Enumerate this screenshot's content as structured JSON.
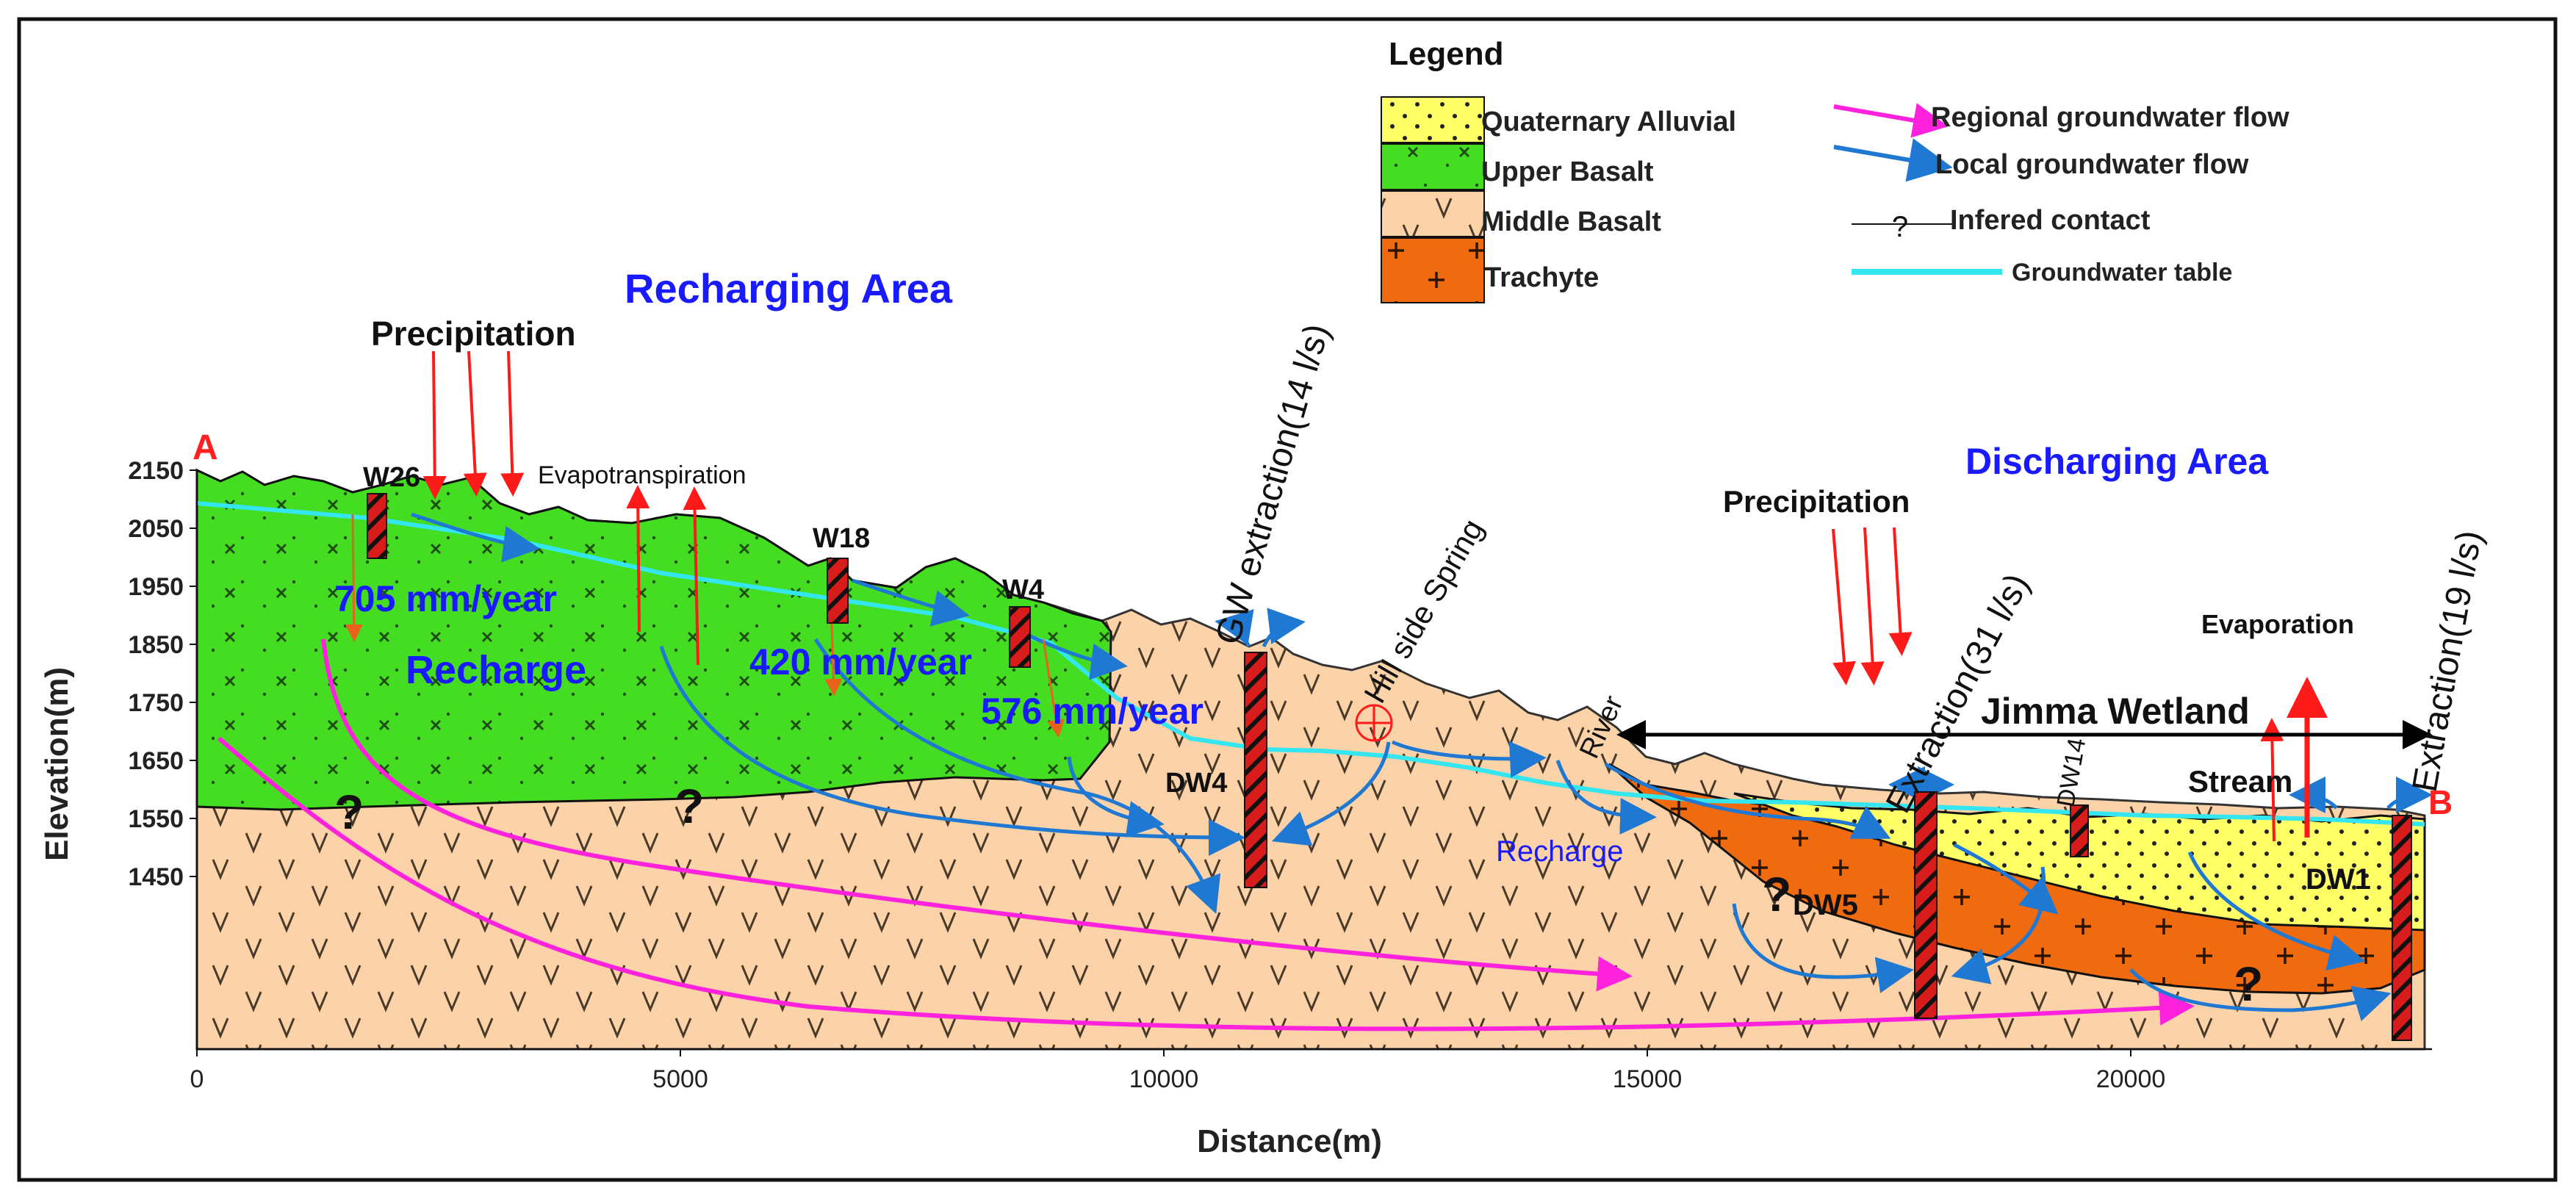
{
  "legend": {
    "title": "Legend",
    "units": [
      {
        "label": "Quaternary Alluvial",
        "color": "#ffff66",
        "pattern": "dots"
      },
      {
        "label": "Upper Basalt",
        "color": "#44dd22",
        "pattern": "crosses"
      },
      {
        "label": "Middle Basalt",
        "color": "#fcd2a8",
        "pattern": "vees"
      },
      {
        "label": "Trachyte",
        "color": "#f06a10",
        "pattern": "plus"
      }
    ],
    "symbols": [
      {
        "label": "Regional groundwater flow",
        "color": "#ff22dd"
      },
      {
        "label": "Local groundwater flow",
        "color": "#1f78d1"
      },
      {
        "label": "Infered contact",
        "glyph": "?"
      },
      {
        "label": "Groundwater table",
        "color": "#33e6f0"
      }
    ]
  },
  "axes": {
    "y_title": "Elevation(m)",
    "y_ticks": [
      "2150",
      "2050",
      "1950",
      "1850",
      "1750",
      "1650",
      "1550",
      "1450"
    ],
    "x_title": "Distance(m)",
    "x_ticks": [
      "0",
      "5000",
      "10000",
      "15000",
      "20000"
    ]
  },
  "section_ends": {
    "start": "A",
    "end": "B"
  },
  "areas": {
    "recharging": "Recharging Area",
    "discharging": "Discharging Area"
  },
  "labels": {
    "precipitation_left": "Precipitation",
    "precipitation_right": "Precipitation",
    "evapotranspiration": "Evapotranspiration",
    "evaporation": "Evaporation",
    "recharge_big": "Recharge",
    "recharge_small": "Recharge",
    "rate_705": "705 mm/year",
    "rate_420": "420 mm/year",
    "rate_576": "576 mm/year",
    "gw_extraction_14": "GW extraction(14 l/s)",
    "hill_side_spring": "Hill side Spring",
    "extraction_31": "Extraction(31 l/s)",
    "extraction_19": "Extraction(19 l/s)",
    "jimma_wetland": "Jimma Wetland",
    "river": "River",
    "stream": "Stream",
    "question": "?"
  },
  "wells": {
    "w26": "W26",
    "w18": "W18",
    "w4": "W4",
    "dw4": "DW4",
    "dw5": "DW5",
    "dw14": "DW14",
    "dw1": "DW1"
  },
  "colors": {
    "area_text": "#1a1aff",
    "ab_text": "#ff2020",
    "precip": "#ff1a1a",
    "well": "#d81b1b"
  }
}
